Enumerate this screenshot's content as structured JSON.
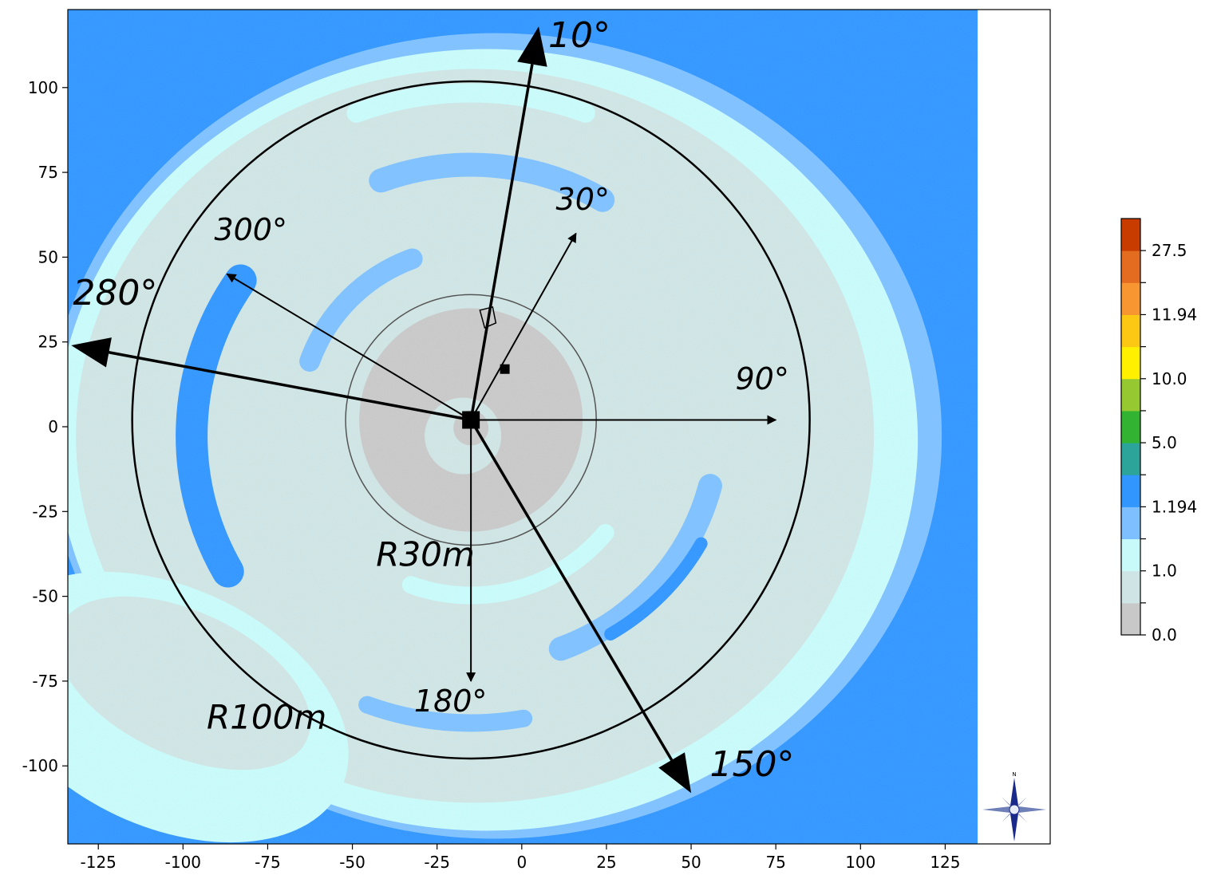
{
  "chart_data": {
    "type": "heatmap",
    "title": "",
    "xlabel": "",
    "ylabel": "",
    "xlim": [
      -134,
      156
    ],
    "ylim": [
      -123,
      123
    ],
    "data_extent_x": [
      -134,
      134
    ],
    "x_ticks": [
      -125,
      -100,
      -75,
      -50,
      -25,
      0,
      25,
      50,
      75,
      100,
      125
    ],
    "y_ticks": [
      100,
      75,
      50,
      25,
      0,
      -25,
      -50,
      -75,
      -100
    ],
    "grid": false,
    "source_center": [
      -15,
      2
    ],
    "secondary_marker": [
      -5,
      17
    ],
    "building_marker": [
      -10,
      32
    ],
    "circles": [
      {
        "label": "R30m",
        "radius": 37,
        "label_pos": [
          -43,
          -41
        ]
      },
      {
        "label": "R100m",
        "radius": 100,
        "label_pos": [
          -93,
          -89
        ]
      }
    ],
    "direction_arrows": [
      {
        "label": "10°",
        "tip": [
          5,
          118
        ],
        "label_pos": [
          17,
          112
        ],
        "heavy": true
      },
      {
        "label": "30°",
        "tip": [
          16,
          57
        ],
        "label_pos": [
          18,
          64
        ],
        "heavy": false
      },
      {
        "label": "90°",
        "tip": [
          75,
          2
        ],
        "label_pos": [
          71,
          11
        ],
        "heavy": false
      },
      {
        "label": "150°",
        "tip": [
          50,
          -108
        ],
        "label_pos": [
          68,
          -103
        ],
        "heavy": true
      },
      {
        "label": "180°",
        "tip": [
          -15,
          -75
        ],
        "label_pos": [
          -21,
          -84
        ],
        "heavy": false
      },
      {
        "label": "280°",
        "tip": [
          -133,
          24
        ],
        "label_pos": [
          -120,
          36
        ],
        "heavy": true
      },
      {
        "label": "300°",
        "tip": [
          -87,
          45
        ],
        "label_pos": [
          -80,
          55
        ],
        "heavy": false
      }
    ],
    "colorbar": {
      "levels": [
        {
          "color": "#c8c8c8"
        },
        {
          "color": "#cfe4e4"
        },
        {
          "color": "#c8fafa"
        },
        {
          "color": "#7ec0ff"
        },
        {
          "color": "#3296ff"
        },
        {
          "color": "#2ca49a"
        },
        {
          "color": "#32b432"
        },
        {
          "color": "#96c832"
        },
        {
          "color": "#fff000"
        },
        {
          "color": "#fcc814"
        },
        {
          "color": "#f89632"
        },
        {
          "color": "#e46c20"
        },
        {
          "color": "#c83c00"
        }
      ],
      "tick_labels": [
        "0.0",
        "1.0",
        "1.194",
        "5.0",
        "10.0",
        "11.94",
        "27.5"
      ]
    },
    "compass_label": "N"
  }
}
